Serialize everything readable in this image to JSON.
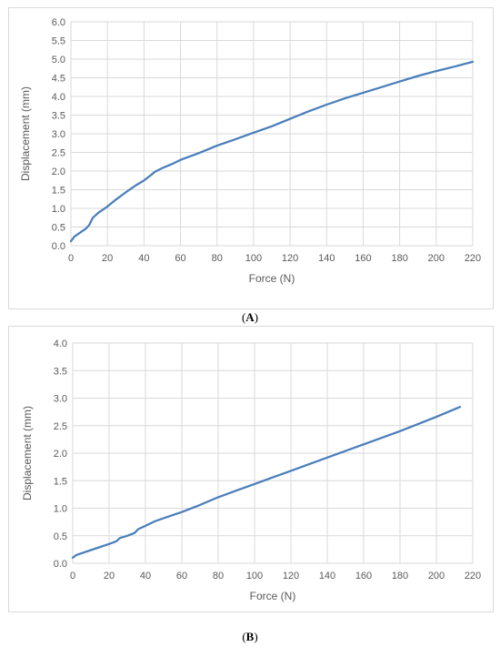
{
  "chart_data": [
    {
      "type": "line",
      "panel": "A",
      "title": "",
      "xlabel": "Force (N)",
      "ylabel": "Displacement (mm)",
      "xlim": [
        0,
        220
      ],
      "ylim": [
        0,
        6
      ],
      "xticks": [
        "0",
        "20",
        "40",
        "60",
        "80",
        "100",
        "120",
        "140",
        "160",
        "180",
        "200",
        "220"
      ],
      "yticks": [
        "0.0",
        "0.5",
        "1.0",
        "1.5",
        "2.0",
        "2.5",
        "3.0",
        "3.5",
        "4.0",
        "4.5",
        "5.0",
        "5.5",
        "6.0"
      ],
      "grid": true,
      "line_color": "#4a7ebb",
      "series": [
        {
          "x": [
            0,
            2,
            5,
            8,
            10,
            12,
            15,
            20,
            25,
            30,
            35,
            40,
            44,
            46,
            50,
            55,
            60,
            70,
            80,
            90,
            100,
            110,
            120,
            130,
            140,
            150,
            160,
            170,
            180,
            190,
            200,
            210,
            220
          ],
          "y": [
            0.12,
            0.25,
            0.35,
            0.45,
            0.55,
            0.75,
            0.88,
            1.05,
            1.25,
            1.43,
            1.6,
            1.75,
            1.9,
            1.98,
            2.08,
            2.18,
            2.3,
            2.48,
            2.68,
            2.85,
            3.03,
            3.2,
            3.4,
            3.6,
            3.78,
            3.95,
            4.1,
            4.25,
            4.4,
            4.55,
            4.68,
            4.8,
            4.93
          ]
        }
      ]
    },
    {
      "type": "line",
      "panel": "B",
      "title": "",
      "xlabel": "Force (N)",
      "ylabel": "Displacement (mm)",
      "xlim": [
        0,
        220
      ],
      "ylim": [
        0,
        4
      ],
      "xticks": [
        "0",
        "20",
        "40",
        "60",
        "80",
        "100",
        "120",
        "140",
        "160",
        "180",
        "200",
        "220"
      ],
      "yticks": [
        "0.0",
        "0.5",
        "1.0",
        "1.5",
        "2.0",
        "2.5",
        "3.0",
        "3.5",
        "4.0"
      ],
      "grid": true,
      "line_color": "#4a7ebb",
      "series": [
        {
          "x": [
            0,
            2,
            10,
            20,
            24,
            26,
            30,
            34,
            36,
            40,
            45,
            50,
            60,
            70,
            80,
            90,
            100,
            110,
            120,
            130,
            140,
            150,
            160,
            170,
            180,
            190,
            200,
            213
          ],
          "y": [
            0.1,
            0.15,
            0.24,
            0.35,
            0.4,
            0.46,
            0.5,
            0.55,
            0.62,
            0.68,
            0.76,
            0.82,
            0.93,
            1.06,
            1.2,
            1.32,
            1.44,
            1.56,
            1.68,
            1.8,
            1.92,
            2.04,
            2.16,
            2.28,
            2.4,
            2.53,
            2.66,
            2.84
          ]
        }
      ]
    }
  ],
  "captions": {
    "a": "A",
    "b": "B"
  }
}
